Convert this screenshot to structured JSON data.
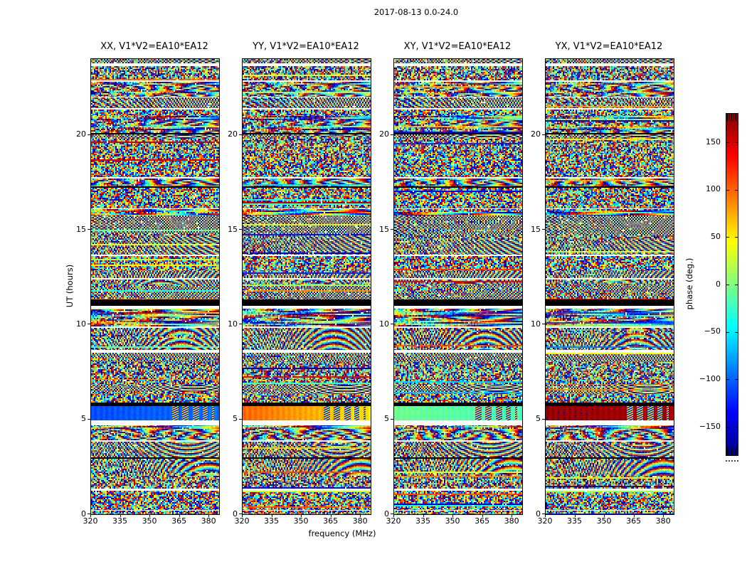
{
  "figure": {
    "title": "2017-08-13 0.0-24.0"
  },
  "chart_data": {
    "type": "heatmap",
    "title": "2017-08-13 0.0-24.0",
    "xlabel": "frequency (MHz)",
    "ylabel": "UT (hours)",
    "x_range": [
      320,
      385
    ],
    "x_ticks": [
      320,
      335,
      350,
      365,
      380
    ],
    "y_range": [
      0,
      24
    ],
    "y_ticks": [
      0,
      5,
      10,
      15,
      20
    ],
    "grid": false,
    "colormap": "jet",
    "colorbar_label": "phase (deg.)",
    "value_range_deg": [
      -180,
      180
    ],
    "colorbar_ticks": [
      -150,
      -100,
      -50,
      0,
      50,
      100,
      150
    ],
    "panels": [
      {
        "pol": "XX",
        "label": "XX, V1*V2=EA10*EA12",
        "band_phase_deg": [
          -108,
          -96
        ]
      },
      {
        "pol": "YY",
        "label": "YY, V1*V2=EA10*EA12",
        "band_phase_deg": [
          100,
          52
        ]
      },
      {
        "pol": "XY",
        "label": "XY, V1*V2=EA10*EA12",
        "band_phase_deg": [
          -6,
          -22
        ]
      },
      {
        "pol": "YX",
        "label": "YX, V1*V2=EA10*EA12",
        "band_phase_deg": [
          172,
          166
        ]
      }
    ],
    "features": {
      "content": "Interferometric visibility phase vs frequency and time for baseline EA10*EA12; mostly random phase noise with fringe patterns, horizontal missing-data gaps (white) and flagged rows (black).",
      "solid_phase_band_ut_hours": [
        4.95,
        5.7
      ],
      "flagged_black_bands_ut_hours": [
        [
          5.7,
          5.9
        ],
        [
          11.0,
          11.35
        ]
      ]
    }
  }
}
